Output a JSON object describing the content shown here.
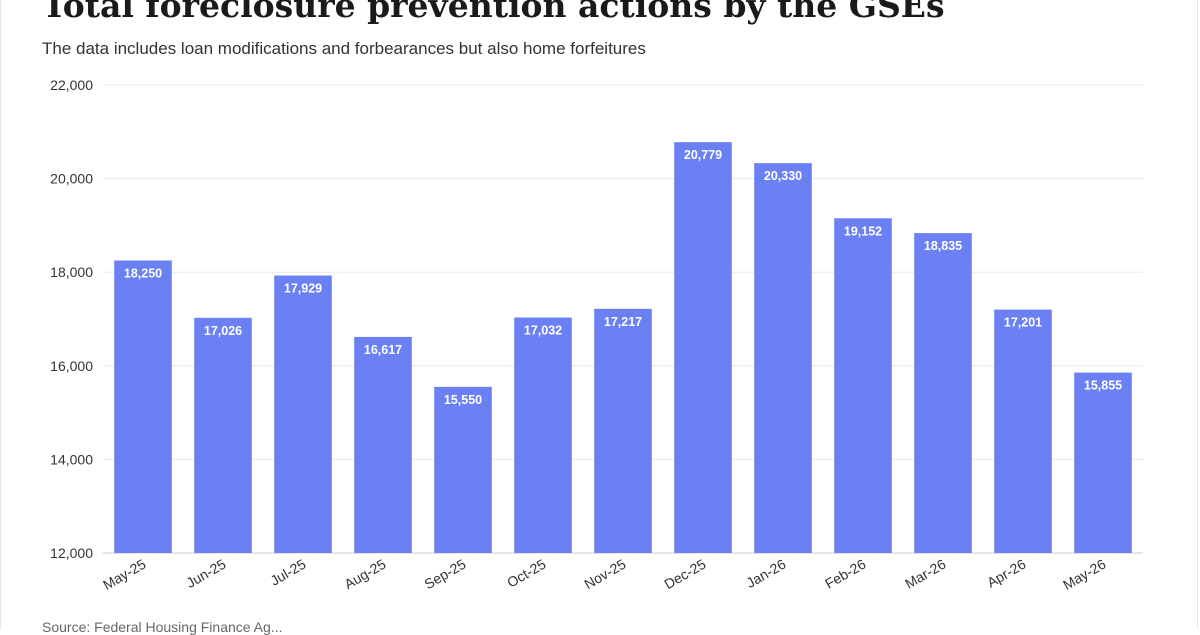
{
  "header": {
    "title": "Total foreclosure prevention actions by the GSEs",
    "subtitle": "The data includes loan modifications and forbearances but also home forfeitures"
  },
  "footer": {
    "source": "Source: Federal Housing Finance Ag..."
  },
  "colors": {
    "bar": "#6a80f3",
    "grid": "#e8e8e8",
    "axis": "#cccccc"
  },
  "chart_data": {
    "type": "bar",
    "title": "Total foreclosure prevention actions by the GSEs",
    "subtitle": "The data includes loan modifications and forbearances but also home forfeitures",
    "xlabel": "",
    "ylabel": "",
    "categories": [
      "May-25",
      "Jun-25",
      "Jul-25",
      "Aug-25",
      "Sep-25",
      "Oct-25",
      "Nov-25",
      "Dec-25",
      "Jan-26",
      "Feb-26",
      "Mar-26",
      "Apr-26",
      "May-26"
    ],
    "values": [
      18250,
      17026,
      17929,
      16617,
      15550,
      17032,
      17217,
      20779,
      20330,
      19152,
      18835,
      17201,
      15855
    ],
    "value_labels": [
      "18,250",
      "17,026",
      "17,929",
      "16,617",
      "15,550",
      "17,032",
      "17,217",
      "20,779",
      "20,330",
      "19,152",
      "18,835",
      "17,201",
      "15,855"
    ],
    "ylim": [
      12000,
      22000
    ],
    "yticks": [
      12000,
      14000,
      16000,
      18000,
      20000,
      22000
    ],
    "ytick_labels": [
      "12,000",
      "14,000",
      "16,000",
      "18,000",
      "20,000",
      "22,000"
    ],
    "grid": true,
    "legend": "none"
  }
}
